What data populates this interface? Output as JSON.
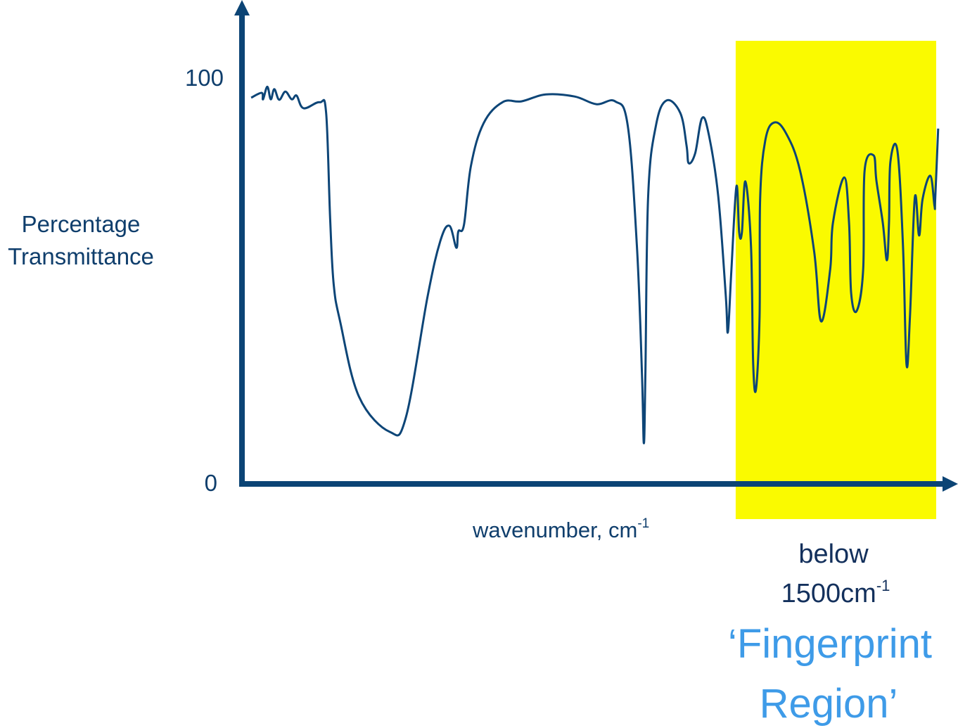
{
  "chart_data": {
    "type": "line",
    "title": "",
    "xlabel": "wavenumber, cm",
    "xlabel_superscript": "-1",
    "ylabel_lines": [
      "Percentage",
      "Transmittance"
    ],
    "xlim": [
      4040,
      380
    ],
    "ylim": [
      0,
      100
    ],
    "y_ticks": [
      {
        "value": 0,
        "label": "0"
      },
      {
        "value": 100,
        "label": "100"
      }
    ],
    "x_ticks": [],
    "grid": false,
    "legend": "none",
    "colors": {
      "axis": "#0b4475",
      "line": "#0d4577",
      "label_text": "#0f3e6c",
      "highlight": "#FAFA00",
      "annotation_dark": "#13305c",
      "annotation_accent": "#3e9be8"
    },
    "series": [
      {
        "x": [
          3996,
          3942,
          3935,
          3913,
          3895,
          3877,
          3852,
          3820,
          3787,
          3762,
          3726,
          3643,
          3610,
          3589,
          3571,
          3538,
          3441,
          3282,
          3199,
          3087,
          3022,
          2975,
          2939,
          2929,
          2900,
          2864,
          2799,
          2701,
          2604,
          2478,
          2330,
          2218,
          2121,
          2056,
          2009,
          1983,
          1973,
          1965,
          1951,
          1911,
          1857,
          1785,
          1753,
          1742,
          1709,
          1673,
          1637,
          1590,
          1551,
          1540,
          1522,
          1496,
          1482,
          1468,
          1450,
          1421,
          1410,
          1395,
          1377,
          1374,
          1348,
          1302,
          1240,
          1168,
          1096,
          1060,
          1013,
          999,
          941,
          916,
          905,
          876,
          843,
          836,
          789,
          775,
          742,
          721,
          710,
          703,
          667,
          638,
          620,
          602,
          577,
          555,
          537,
          497,
          476,
          472,
          457
        ],
        "y": [
          95.0,
          96.2,
          94.6,
          97.7,
          94.6,
          97.1,
          94.5,
          96.5,
          94.6,
          95.5,
          92.4,
          93.9,
          91.2,
          64.7,
          49.1,
          40.0,
          21.5,
          12.8,
          16.4,
          46.2,
          59.7,
          63.5,
          58.1,
          62.1,
          63.7,
          78.2,
          88.7,
          93.9,
          94.1,
          95.8,
          95.3,
          93.4,
          94.1,
          88.1,
          58.5,
          27.5,
          10.0,
          27.5,
          70.8,
          88.1,
          94.3,
          91.2,
          83.2,
          78.9,
          81.3,
          90.0,
          85.6,
          70.8,
          46.2,
          37.4,
          52.8,
          73.2,
          61.9,
          61.9,
          74.4,
          58.5,
          29.6,
          23.4,
          41.2,
          70.1,
          84.4,
          88.9,
          86.2,
          77.0,
          57.3,
          40.0,
          52.8,
          64.2,
          75.4,
          64.2,
          46.9,
          42.6,
          52.8,
          77.0,
          80.8,
          74.6,
          64.2,
          55.0,
          64.2,
          79.2,
          82.0,
          58.5,
          29.4,
          41.2,
          70.4,
          61.1,
          70.1,
          75.8,
          68.5,
          70.1,
          87.4
        ]
      }
    ],
    "highlight_region": {
      "from": 1500,
      "to": 467
    },
    "annotations": {
      "below": "below",
      "threshold": "1500cm",
      "threshold_superscript": "-1",
      "region_line1": "‘Fingerprint",
      "region_line2": "Region’"
    }
  }
}
